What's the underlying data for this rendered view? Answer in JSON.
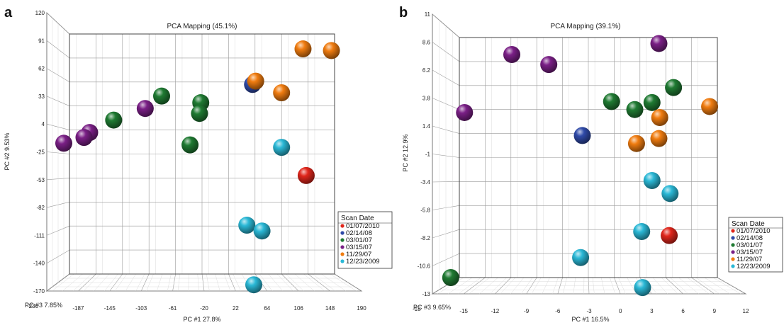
{
  "figure": {
    "legend_title": "Scan Date",
    "colors": {
      "01/07/2010": "#e0261b",
      "02/14/08": "#2f4aa8",
      "03/01/07": "#1f7a32",
      "03/15/07": "#7a1f86",
      "11/29/07": "#f07c10",
      "12/23/2009": "#2ab8d6"
    }
  },
  "chart_data": [
    {
      "panel_label": "a",
      "type": "scatter",
      "title": "PCA Mapping (45.1%)",
      "xlabel": "PC #1 27.8%",
      "ylabel": "PC #2 9.53%",
      "zlabel": "PC #3 7.85%",
      "xlim": [
        -230,
        190
      ],
      "ylim": [
        -170,
        120
      ],
      "xticks": [
        "-230",
        "-187",
        "-145",
        "-103",
        "-61",
        "-20",
        "22",
        "64",
        "106",
        "148",
        "190"
      ],
      "yticks": [
        "120",
        "91",
        "62",
        "33",
        "4",
        "-25",
        "-53",
        "-82",
        "-111",
        "-140",
        "-170"
      ],
      "grid": true,
      "legend": "bottom-right",
      "legend_entries": [
        "01/07/2010",
        "02/14/08",
        "03/01/07",
        "03/15/07",
        "11/29/07",
        "12/23/2009"
      ],
      "series": [
        {
          "name": "01/07/2010",
          "points": [
            [
              145,
              -51
            ]
          ]
        },
        {
          "name": "02/14/08",
          "points": [
            [
              60,
              59
            ]
          ]
        },
        {
          "name": "03/01/07",
          "points": [
            [
              -160,
              16
            ],
            [
              -84,
              45
            ],
            [
              -22,
              37
            ],
            [
              -24,
              24
            ],
            [
              -39,
              -14
            ]
          ]
        },
        {
          "name": "03/15/07",
          "points": [
            [
              -110,
              30
            ],
            [
              -198,
              1
            ],
            [
              -207,
              -5
            ],
            [
              -239,
              -12
            ]
          ]
        },
        {
          "name": "11/29/07",
          "points": [
            [
              65,
              63
            ],
            [
              106,
              49
            ],
            [
              140,
              102
            ],
            [
              185,
              100
            ]
          ]
        },
        {
          "name": "12/23/2009",
          "points": [
            [
              106,
              -17
            ],
            [
              51,
              -111
            ],
            [
              75,
              -118
            ],
            [
              62,
              -183
            ]
          ]
        }
      ]
    },
    {
      "panel_label": "b",
      "type": "scatter",
      "title": "PCA Mapping (39.1%)",
      "xlabel": "PC #1 16.5%",
      "ylabel": "PC #2 12.9%",
      "zlabel": "PC #3 9.65%",
      "xlim": [
        -18,
        12
      ],
      "ylim": [
        -13,
        11
      ],
      "xticks": [
        "-18",
        "-15",
        "-12",
        "-9",
        "-6",
        "-3",
        "0",
        "3",
        "6",
        "9",
        "12"
      ],
      "yticks": [
        "11",
        "8.6",
        "6.2",
        "3.8",
        "1.4",
        "-1",
        "-3.4",
        "-5.8",
        "-8.2",
        "-10.6",
        "-13"
      ],
      "grid": true,
      "legend": "bottom-right",
      "legend_entries": [
        "01/07/2010",
        "02/14/08",
        "03/01/07",
        "03/15/07",
        "11/29/07",
        "12/23/2009"
      ],
      "series": [
        {
          "name": "01/07/2010",
          "points": [
            [
              6.4,
              -8.8
            ]
          ]
        },
        {
          "name": "02/14/08",
          "points": [
            [
              -3.7,
              1.2
            ]
          ]
        },
        {
          "name": "03/01/07",
          "points": [
            [
              -0.3,
              4.6
            ],
            [
              2.4,
              3.8
            ],
            [
              4.4,
              4.5
            ],
            [
              6.9,
              6.0
            ],
            [
              -19,
              -13
            ]
          ]
        },
        {
          "name": "03/15/07",
          "points": [
            [
              -11.9,
              9.3
            ],
            [
              -7.6,
              8.3
            ],
            [
              -17.4,
              3.5
            ],
            [
              5.2,
              10.4
            ]
          ]
        },
        {
          "name": "11/29/07",
          "points": [
            [
              5.3,
              3.0
            ],
            [
              2.6,
              0.4
            ],
            [
              5.2,
              0.9
            ],
            [
              11.1,
              4.1
            ]
          ]
        },
        {
          "name": "12/23/2009",
          "points": [
            [
              4.4,
              -3.3
            ],
            [
              6.5,
              -4.6
            ],
            [
              3.2,
              -8.4
            ],
            [
              -3.9,
              -11.0
            ],
            [
              3.3,
              -14.0
            ]
          ]
        }
      ]
    }
  ]
}
